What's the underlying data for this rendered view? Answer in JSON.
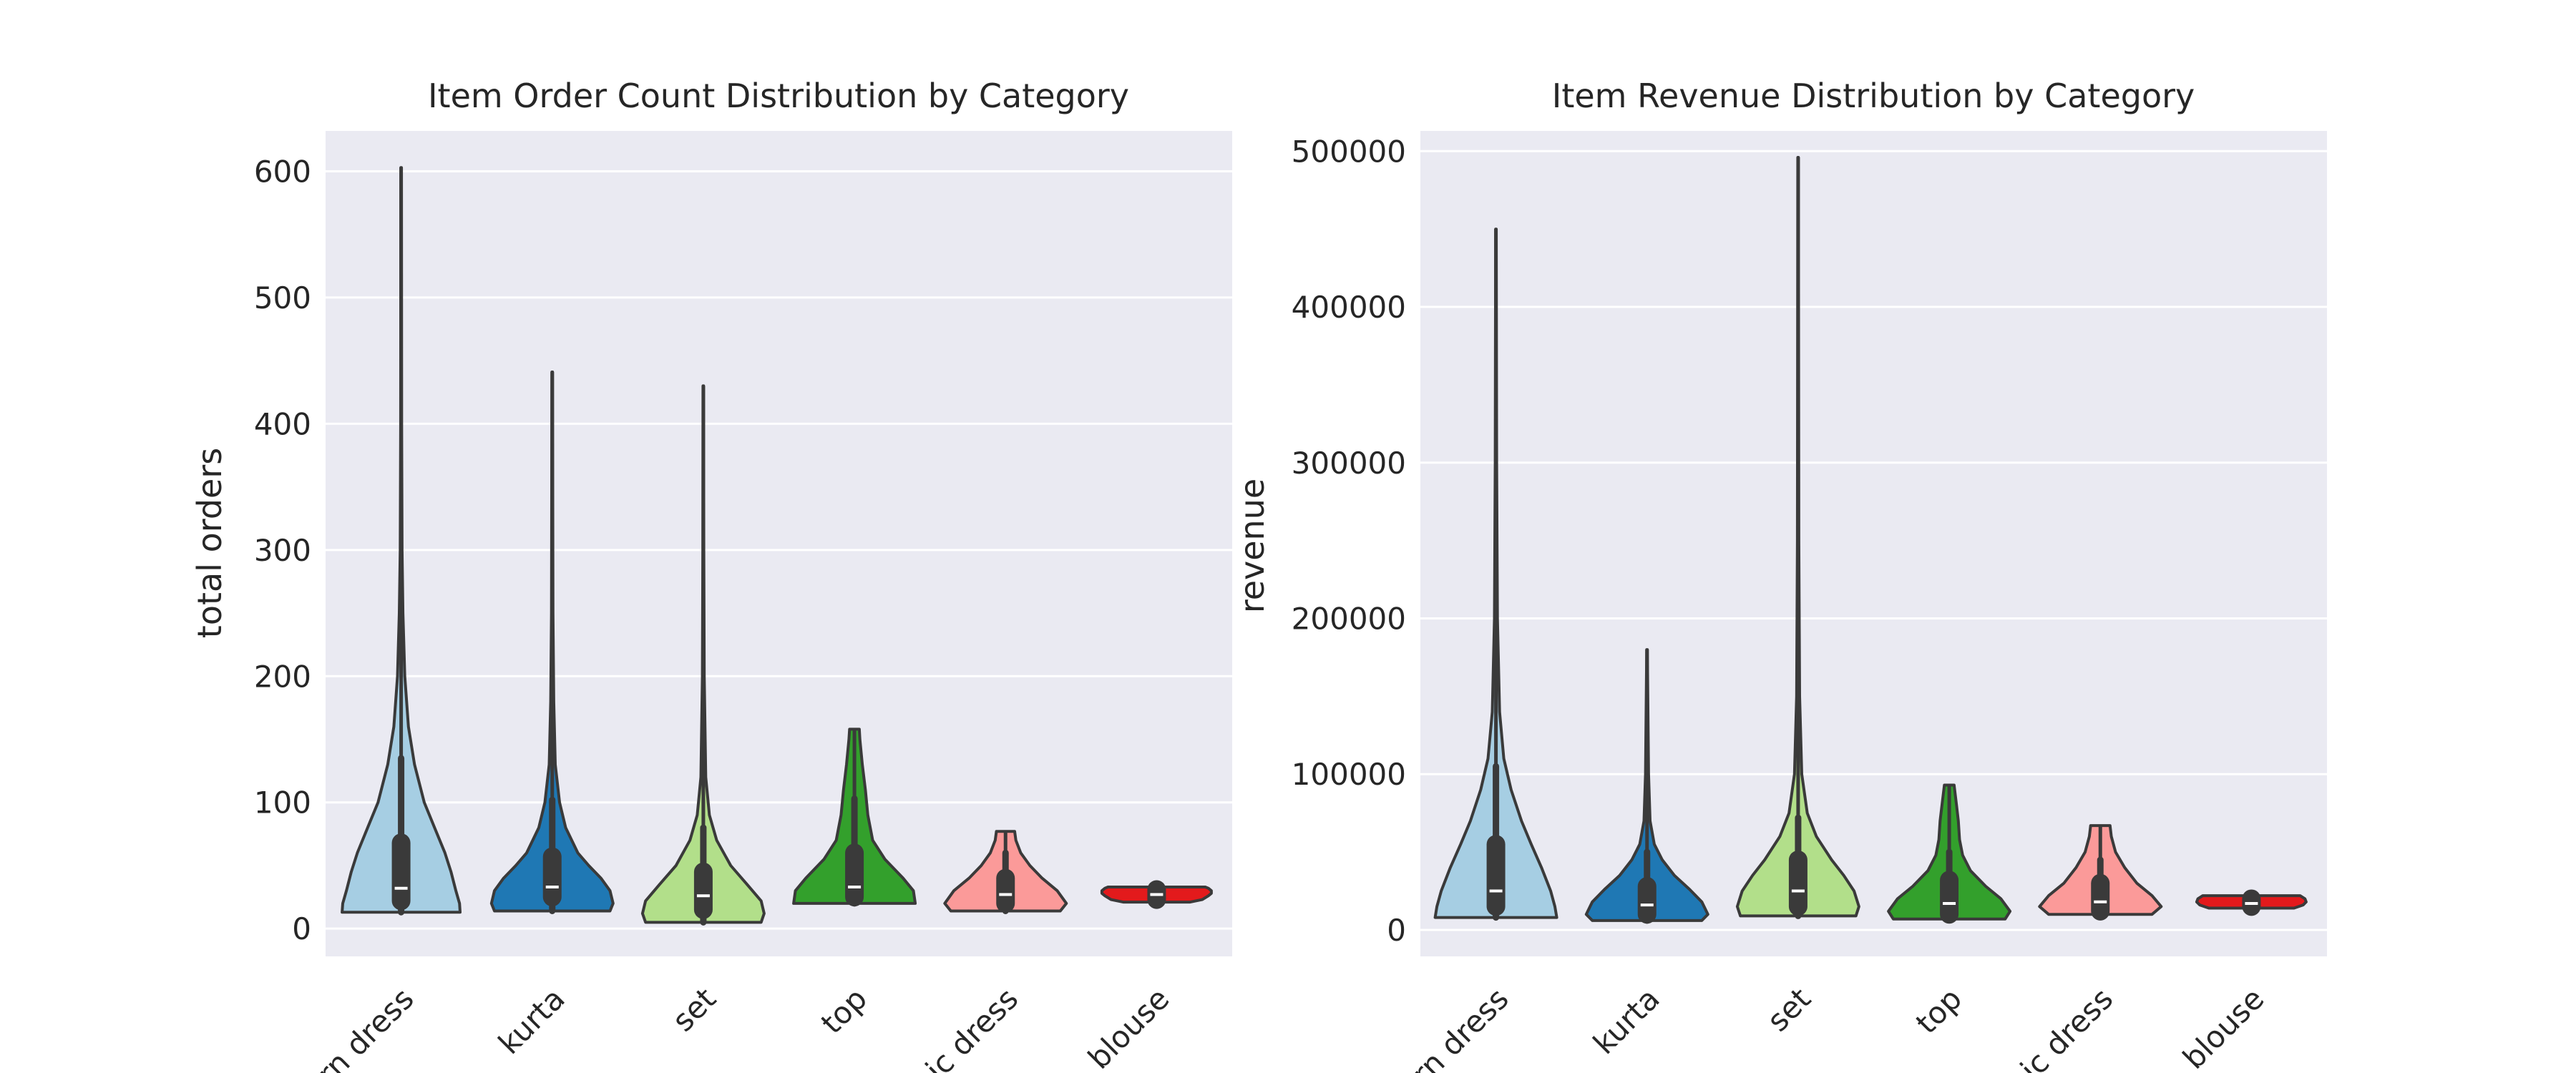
{
  "chart_data": [
    {
      "type": "violin",
      "title": "Item Order Count Distribution by Category",
      "xlabel": "",
      "ylabel": "total orders",
      "ylim": [
        -22,
        632
      ],
      "yticks": [
        0,
        100,
        200,
        300,
        400,
        500,
        600
      ],
      "grid": true,
      "categories": [
        "modern dress",
        "kurta",
        "set",
        "top",
        "ethnic dress",
        "blouse"
      ],
      "tick_labels_visible": [
        "rn dress",
        "kurta",
        "set",
        "top",
        "ic dress",
        "blouse"
      ],
      "colors": [
        "#a6cee3",
        "#1f78b4",
        "#b2df8a",
        "#33a02c",
        "#fb9a99",
        "#e31a1c"
      ],
      "series": [
        {
          "category": "modern dress",
          "min": 13,
          "q1": 22,
          "median": 32,
          "q3": 68,
          "whisker_high": 135,
          "max": 603,
          "shape": [
            [
              13,
              0.97
            ],
            [
              20,
              0.96
            ],
            [
              30,
              0.9
            ],
            [
              45,
              0.82
            ],
            [
              60,
              0.72
            ],
            [
              80,
              0.55
            ],
            [
              100,
              0.38
            ],
            [
              130,
              0.22
            ],
            [
              160,
              0.12
            ],
            [
              200,
              0.06
            ],
            [
              250,
              0.03
            ],
            [
              300,
              0.015
            ],
            [
              400,
              0.008
            ],
            [
              603,
              0.005
            ]
          ]
        },
        {
          "category": "kurta",
          "min": 14,
          "q1": 25,
          "median": 33,
          "q3": 57,
          "whisker_high": 102,
          "max": 441,
          "shape": [
            [
              14,
              0.95
            ],
            [
              20,
              1.0
            ],
            [
              30,
              0.95
            ],
            [
              40,
              0.8
            ],
            [
              50,
              0.6
            ],
            [
              60,
              0.42
            ],
            [
              80,
              0.22
            ],
            [
              100,
              0.12
            ],
            [
              130,
              0.05
            ],
            [
              180,
              0.025
            ],
            [
              250,
              0.012
            ],
            [
              441,
              0.005
            ]
          ]
        },
        {
          "category": "set",
          "min": 5,
          "q1": 15,
          "median": 26,
          "q3": 45,
          "whisker_high": 80,
          "max": 430,
          "shape": [
            [
              5,
              0.95
            ],
            [
              12,
              1.0
            ],
            [
              22,
              0.95
            ],
            [
              35,
              0.72
            ],
            [
              50,
              0.45
            ],
            [
              70,
              0.22
            ],
            [
              90,
              0.1
            ],
            [
              120,
              0.04
            ],
            [
              200,
              0.015
            ],
            [
              300,
              0.008
            ],
            [
              430,
              0.005
            ]
          ]
        },
        {
          "category": "top",
          "min": 20,
          "q1": 25,
          "median": 33,
          "q3": 60,
          "whisker_high": 103,
          "max": 158,
          "shape": [
            [
              20,
              1.0
            ],
            [
              30,
              0.97
            ],
            [
              40,
              0.8
            ],
            [
              55,
              0.5
            ],
            [
              70,
              0.3
            ],
            [
              90,
              0.22
            ],
            [
              110,
              0.18
            ],
            [
              130,
              0.13
            ],
            [
              150,
              0.09
            ],
            [
              158,
              0.08
            ]
          ]
        },
        {
          "category": "ethnic dress",
          "min": 14,
          "q1": 20,
          "median": 27,
          "q3": 40,
          "whisker_high": 60,
          "max": 77,
          "shape": [
            [
              14,
              0.9
            ],
            [
              20,
              1.0
            ],
            [
              30,
              0.85
            ],
            [
              40,
              0.6
            ],
            [
              50,
              0.4
            ],
            [
              60,
              0.25
            ],
            [
              70,
              0.17
            ],
            [
              77,
              0.15
            ]
          ]
        },
        {
          "category": "blouse",
          "min": 21,
          "q1": 23,
          "median": 27,
          "q3": 31,
          "whisker_high": 33,
          "max": 33,
          "shape": [
            [
              21,
              0.55
            ],
            [
              23,
              0.75
            ],
            [
              26,
              0.85
            ],
            [
              28,
              0.9
            ],
            [
              30,
              0.9
            ],
            [
              32,
              0.85
            ],
            [
              33,
              0.8
            ]
          ]
        }
      ]
    },
    {
      "type": "violin",
      "title": "Item Revenue Distribution by Category",
      "xlabel": "",
      "ylabel": "revenue",
      "ylim": [
        -17000,
        513000
      ],
      "yticks": [
        0,
        100000,
        200000,
        300000,
        400000,
        500000
      ],
      "grid": true,
      "categories": [
        "modern dress",
        "kurta",
        "set",
        "top",
        "ethnic dress",
        "blouse"
      ],
      "tick_labels_visible": [
        "rn dress",
        "kurta",
        "set",
        "top",
        "ic dress",
        "blouse"
      ],
      "colors": [
        "#a6cee3",
        "#1f78b4",
        "#b2df8a",
        "#33a02c",
        "#fb9a99",
        "#e31a1c"
      ],
      "series": [
        {
          "category": "modern dress",
          "min": 8000,
          "q1": 15000,
          "median": 25000,
          "q3": 55000,
          "whisker_high": 105000,
          "max": 450000,
          "shape": [
            [
              8000,
              1.0
            ],
            [
              15000,
              0.97
            ],
            [
              25000,
              0.9
            ],
            [
              40000,
              0.75
            ],
            [
              55000,
              0.58
            ],
            [
              70000,
              0.42
            ],
            [
              90000,
              0.25
            ],
            [
              110000,
              0.13
            ],
            [
              140000,
              0.06
            ],
            [
              200000,
              0.025
            ],
            [
              300000,
              0.012
            ],
            [
              450000,
              0.005
            ]
          ]
        },
        {
          "category": "kurta",
          "min": 6000,
          "q1": 10000,
          "median": 16000,
          "q3": 28000,
          "whisker_high": 50000,
          "max": 180000,
          "shape": [
            [
              6000,
              0.9
            ],
            [
              10000,
              1.0
            ],
            [
              18000,
              0.9
            ],
            [
              26000,
              0.7
            ],
            [
              35000,
              0.45
            ],
            [
              45000,
              0.25
            ],
            [
              55000,
              0.12
            ],
            [
              70000,
              0.05
            ],
            [
              100000,
              0.025
            ],
            [
              180000,
              0.005
            ]
          ]
        },
        {
          "category": "set",
          "min": 9000,
          "q1": 15000,
          "median": 25000,
          "q3": 45000,
          "whisker_high": 72000,
          "max": 496000,
          "shape": [
            [
              9000,
              0.95
            ],
            [
              15000,
              1.0
            ],
            [
              25000,
              0.92
            ],
            [
              35000,
              0.75
            ],
            [
              45000,
              0.55
            ],
            [
              60000,
              0.3
            ],
            [
              75000,
              0.15
            ],
            [
              100000,
              0.06
            ],
            [
              150000,
              0.025
            ],
            [
              250000,
              0.012
            ],
            [
              496000,
              0.005
            ]
          ]
        },
        {
          "category": "top",
          "min": 7000,
          "q1": 10000,
          "median": 17000,
          "q3": 32000,
          "whisker_high": 50000,
          "max": 93000,
          "shape": [
            [
              7000,
              0.92
            ],
            [
              12000,
              1.0
            ],
            [
              20000,
              0.85
            ],
            [
              28000,
              0.6
            ],
            [
              38000,
              0.35
            ],
            [
              48000,
              0.22
            ],
            [
              58000,
              0.17
            ],
            [
              70000,
              0.15
            ],
            [
              80000,
              0.12
            ],
            [
              93000,
              0.08
            ]
          ]
        },
        {
          "category": "ethnic dress",
          "min": 10000,
          "q1": 12000,
          "median": 18000,
          "q3": 30000,
          "whisker_high": 45000,
          "max": 67000,
          "shape": [
            [
              10000,
              0.85
            ],
            [
              15000,
              1.0
            ],
            [
              22000,
              0.85
            ],
            [
              30000,
              0.6
            ],
            [
              40000,
              0.4
            ],
            [
              50000,
              0.25
            ],
            [
              60000,
              0.18
            ],
            [
              67000,
              0.16
            ]
          ]
        },
        {
          "category": "blouse",
          "min": 14000,
          "q1": 15000,
          "median": 17000,
          "q3": 20000,
          "whisker_high": 21000,
          "max": 22000,
          "shape": [
            [
              14000,
              0.7
            ],
            [
              16000,
              0.85
            ],
            [
              18000,
              0.9
            ],
            [
              20000,
              0.88
            ],
            [
              22000,
              0.8
            ]
          ]
        }
      ]
    }
  ]
}
